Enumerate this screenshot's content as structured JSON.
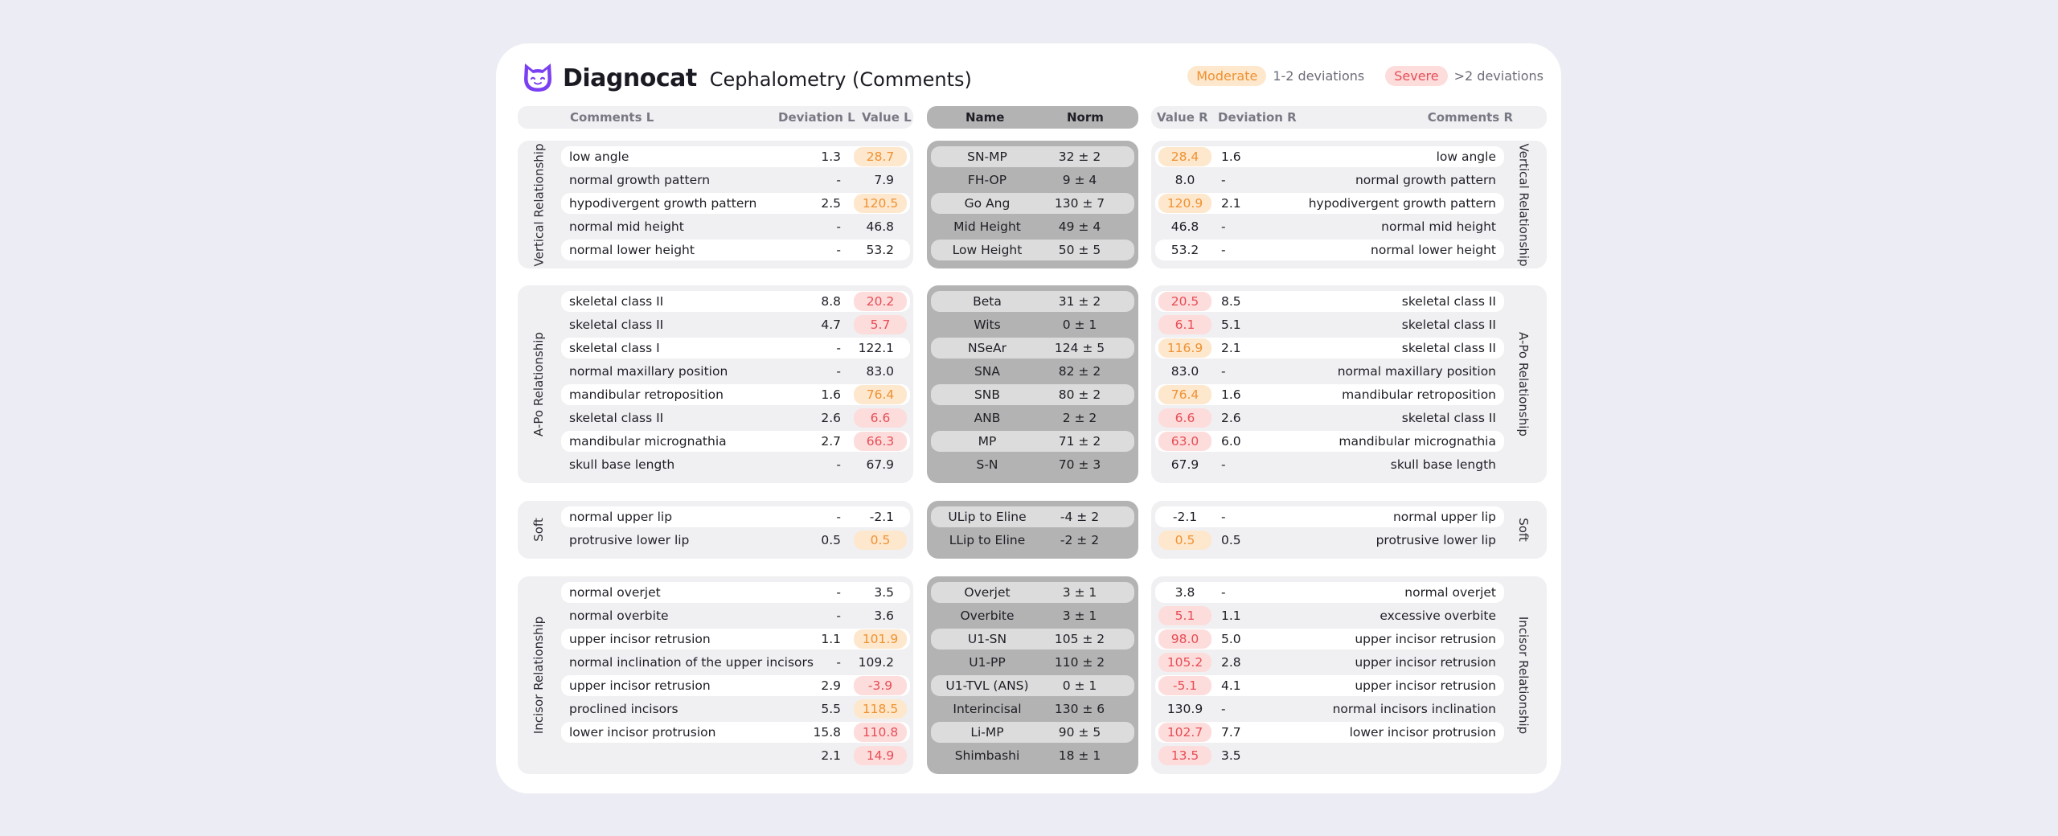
{
  "app": {
    "brand": "Diagnocat",
    "title": "Cephalometry (Comments)",
    "logo_icon": "cat-face-logo-icon",
    "brand_color": "#7b3ff2"
  },
  "legend": {
    "moderate_label": "Moderate",
    "moderate_text": "1-2 deviations",
    "severe_label": "Severe",
    "severe_text": ">2 deviations"
  },
  "colors": {
    "moderate_bg": "#fde7cd",
    "moderate_fg": "#ef9233",
    "severe_bg": "#fddcdc",
    "severe_fg": "#e64e55"
  },
  "headers": {
    "comments_l": "Comments L",
    "deviation_l": "Deviation L",
    "value_l": "Value L",
    "name": "Name",
    "norm": "Norm",
    "value_r": "Value R",
    "deviation_r": "Deviation R",
    "comments_r": "Comments R"
  },
  "groups": [
    {
      "label": "Vertical Relationship",
      "rows": [
        {
          "comment_l": "low angle",
          "dev_l": "1.3",
          "val_l": "28.7",
          "sev_l": "moderate",
          "name": "SN-MP",
          "norm": "32 ± 2",
          "val_r": "28.4",
          "sev_r": "moderate",
          "dev_r": "1.6",
          "comment_r": "low angle"
        },
        {
          "comment_l": "normal growth pattern",
          "dev_l": "-",
          "val_l": "7.9",
          "sev_l": "",
          "name": "FH-OP",
          "norm": "9 ± 4",
          "val_r": "8.0",
          "sev_r": "",
          "dev_r": "-",
          "comment_r": "normal growth pattern"
        },
        {
          "comment_l": "hypodivergent growth pattern",
          "dev_l": "2.5",
          "val_l": "120.5",
          "sev_l": "moderate",
          "name": "Go Ang",
          "norm": "130 ± 7",
          "val_r": "120.9",
          "sev_r": "moderate",
          "dev_r": "2.1",
          "comment_r": "hypodivergent growth pattern"
        },
        {
          "comment_l": "normal mid height",
          "dev_l": "-",
          "val_l": "46.8",
          "sev_l": "",
          "name": "Mid Height",
          "norm": "49 ± 4",
          "val_r": "46.8",
          "sev_r": "",
          "dev_r": "-",
          "comment_r": "normal mid height"
        },
        {
          "comment_l": "normal lower height",
          "dev_l": "-",
          "val_l": "53.2",
          "sev_l": "",
          "name": "Low Height",
          "norm": "50 ± 5",
          "val_r": "53.2",
          "sev_r": "",
          "dev_r": "-",
          "comment_r": "normal lower height"
        }
      ]
    },
    {
      "label": "A-Po Relationship",
      "rows": [
        {
          "comment_l": "skeletal class II",
          "dev_l": "8.8",
          "val_l": "20.2",
          "sev_l": "severe",
          "name": "Beta",
          "norm": "31 ± 2",
          "val_r": "20.5",
          "sev_r": "severe",
          "dev_r": "8.5",
          "comment_r": "skeletal class II"
        },
        {
          "comment_l": "skeletal class II",
          "dev_l": "4.7",
          "val_l": "5.7",
          "sev_l": "severe",
          "name": "Wits",
          "norm": "0 ± 1",
          "val_r": "6.1",
          "sev_r": "severe",
          "dev_r": "5.1",
          "comment_r": "skeletal class II"
        },
        {
          "comment_l": "skeletal class I",
          "dev_l": "-",
          "val_l": "122.1",
          "sev_l": "",
          "name": "NSeAr",
          "norm": "124 ± 5",
          "val_r": "116.9",
          "sev_r": "moderate",
          "dev_r": "2.1",
          "comment_r": "skeletal class II"
        },
        {
          "comment_l": "normal maxillary position",
          "dev_l": "-",
          "val_l": "83.0",
          "sev_l": "",
          "name": "SNA",
          "norm": "82 ± 2",
          "val_r": "83.0",
          "sev_r": "",
          "dev_r": "-",
          "comment_r": "normal maxillary position"
        },
        {
          "comment_l": "mandibular retroposition",
          "dev_l": "1.6",
          "val_l": "76.4",
          "sev_l": "moderate",
          "name": "SNB",
          "norm": "80 ± 2",
          "val_r": "76.4",
          "sev_r": "moderate",
          "dev_r": "1.6",
          "comment_r": "mandibular retroposition"
        },
        {
          "comment_l": "skeletal class II",
          "dev_l": "2.6",
          "val_l": "6.6",
          "sev_l": "severe",
          "name": "ANB",
          "norm": "2 ± 2",
          "val_r": "6.6",
          "sev_r": "severe",
          "dev_r": "2.6",
          "comment_r": "skeletal class II"
        },
        {
          "comment_l": "mandibular micrognathia",
          "dev_l": "2.7",
          "val_l": "66.3",
          "sev_l": "severe",
          "name": "MP",
          "norm": "71 ± 2",
          "val_r": "63.0",
          "sev_r": "severe",
          "dev_r": "6.0",
          "comment_r": "mandibular micrognathia"
        },
        {
          "comment_l": "skull base length",
          "dev_l": "-",
          "val_l": "67.9",
          "sev_l": "",
          "name": "S-N",
          "norm": "70 ± 3",
          "val_r": "67.9",
          "sev_r": "",
          "dev_r": "-",
          "comment_r": "skull base length"
        }
      ]
    },
    {
      "label": "Soft",
      "rows": [
        {
          "comment_l": "normal upper lip",
          "dev_l": "-",
          "val_l": "-2.1",
          "sev_l": "",
          "name": "ULip to Eline",
          "norm": "-4 ± 2",
          "val_r": "-2.1",
          "sev_r": "",
          "dev_r": "-",
          "comment_r": "normal upper lip"
        },
        {
          "comment_l": "protrusive lower lip",
          "dev_l": "0.5",
          "val_l": "0.5",
          "sev_l": "moderate",
          "name": "LLip to Eline",
          "norm": "-2 ± 2",
          "val_r": "0.5",
          "sev_r": "moderate",
          "dev_r": "0.5",
          "comment_r": "protrusive lower lip"
        }
      ]
    },
    {
      "label": "Incisor Relationship",
      "rows": [
        {
          "comment_l": "normal overjet",
          "dev_l": "-",
          "val_l": "3.5",
          "sev_l": "",
          "name": "Overjet",
          "norm": "3 ± 1",
          "val_r": "3.8",
          "sev_r": "",
          "dev_r": "-",
          "comment_r": "normal overjet"
        },
        {
          "comment_l": "normal overbite",
          "dev_l": "-",
          "val_l": "3.6",
          "sev_l": "",
          "name": "Overbite",
          "norm": "3 ± 1",
          "val_r": "5.1",
          "sev_r": "severe",
          "dev_r": "1.1",
          "comment_r": "excessive overbite"
        },
        {
          "comment_l": "upper incisor retrusion",
          "dev_l": "1.1",
          "val_l": "101.9",
          "sev_l": "moderate",
          "name": "U1-SN",
          "norm": "105 ± 2",
          "val_r": "98.0",
          "sev_r": "severe",
          "dev_r": "5.0",
          "comment_r": "upper incisor retrusion"
        },
        {
          "comment_l": "normal inclination of the upper incisors",
          "dev_l": "-",
          "val_l": "109.2",
          "sev_l": "",
          "name": "U1-PP",
          "norm": "110 ± 2",
          "val_r": "105.2",
          "sev_r": "severe",
          "dev_r": "2.8",
          "comment_r": "upper incisor retrusion"
        },
        {
          "comment_l": "upper incisor retrusion",
          "dev_l": "2.9",
          "val_l": "-3.9",
          "sev_l": "severe",
          "name": "U1-TVL (ANS)",
          "norm": "0 ± 1",
          "val_r": "-5.1",
          "sev_r": "severe",
          "dev_r": "4.1",
          "comment_r": "upper incisor retrusion"
        },
        {
          "comment_l": "proclined incisors",
          "dev_l": "5.5",
          "val_l": "118.5",
          "sev_l": "moderate",
          "name": "Interincisal",
          "norm": "130 ± 6",
          "val_r": "130.9",
          "sev_r": "",
          "dev_r": "-",
          "comment_r": "normal incisors inclination"
        },
        {
          "comment_l": "lower incisor protrusion",
          "dev_l": "15.8",
          "val_l": "110.8",
          "sev_l": "severe",
          "name": "Li-MP",
          "norm": "90 ± 5",
          "val_r": "102.7",
          "sev_r": "severe",
          "dev_r": "7.7",
          "comment_r": "lower incisor protrusion"
        },
        {
          "comment_l": "",
          "dev_l": "2.1",
          "val_l": "14.9",
          "sev_l": "severe",
          "name": "Shimbashi",
          "norm": "18 ± 1",
          "val_r": "13.5",
          "sev_r": "severe",
          "dev_r": "3.5",
          "comment_r": ""
        }
      ]
    }
  ]
}
